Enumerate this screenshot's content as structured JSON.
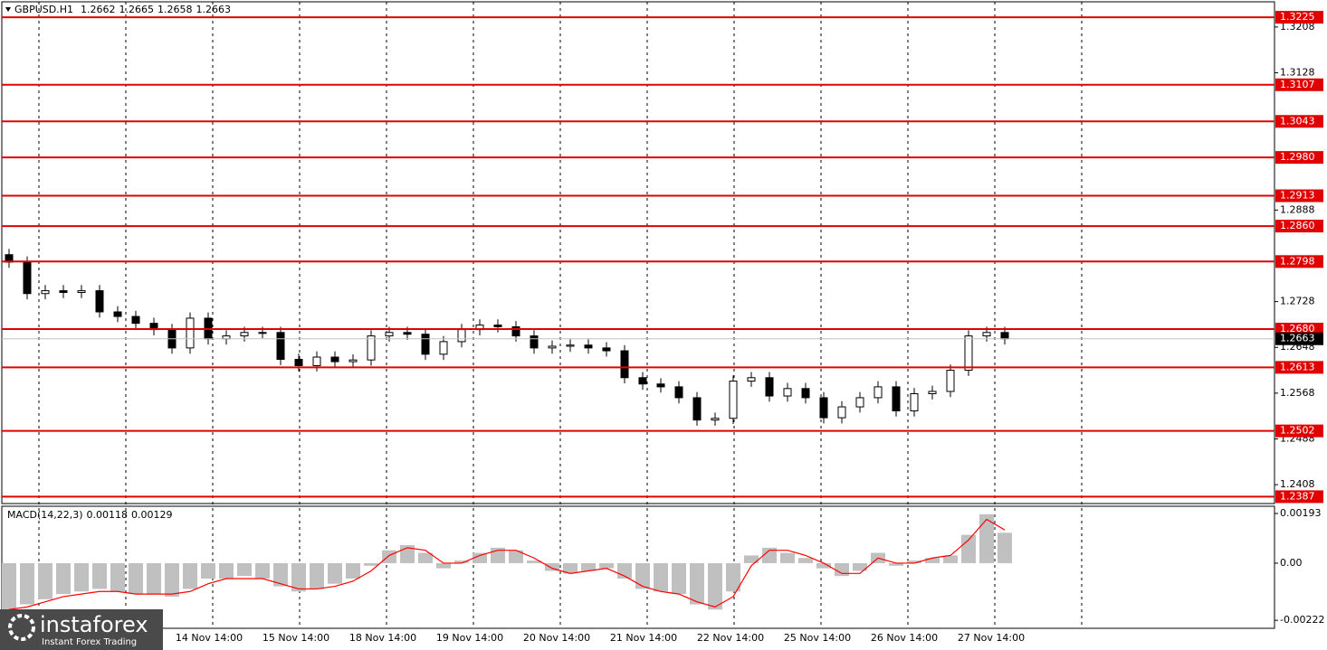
{
  "chart_data": [
    {
      "type": "candlestick",
      "title": "GBPUSD.H1",
      "header_values": [
        1.2662,
        1.2665,
        1.2658,
        1.2663
      ],
      "open": [
        1.281,
        1.2797,
        1.2742,
        1.2747,
        1.2744,
        1.2747,
        1.271,
        1.2702,
        1.269,
        1.2679,
        1.2647,
        1.2699,
        1.2663,
        1.2668,
        1.2674,
        1.2674,
        1.2627,
        1.2616,
        1.2631,
        1.2623,
        1.2626,
        1.2668,
        1.2674,
        1.2671,
        1.2636,
        1.2658,
        1.2679,
        1.2687,
        1.2684,
        1.2668,
        1.2647,
        1.265,
        1.2652,
        1.2647,
        1.2642,
        1.2595,
        1.2584,
        1.2579,
        1.256,
        1.2521,
        1.2524,
        1.2589,
        1.2595,
        1.2563,
        1.2576,
        1.256,
        1.2525,
        1.2544,
        1.256,
        1.2579,
        1.2537,
        1.2567,
        1.2571,
        1.2608,
        1.2668,
        1.2674
      ],
      "high": [
        1.282,
        1.2807,
        1.2757,
        1.2757,
        1.2757,
        1.2757,
        1.272,
        1.2712,
        1.27,
        1.2689,
        1.2709,
        1.2709,
        1.2678,
        1.2684,
        1.2684,
        1.2684,
        1.2637,
        1.2641,
        1.2641,
        1.2636,
        1.2678,
        1.2684,
        1.2684,
        1.2681,
        1.2668,
        1.2689,
        1.2697,
        1.2697,
        1.2694,
        1.2678,
        1.266,
        1.2662,
        1.2662,
        1.2657,
        1.2652,
        1.2605,
        1.2594,
        1.2589,
        1.257,
        1.2534,
        1.2599,
        1.2605,
        1.2605,
        1.2586,
        1.2586,
        1.257,
        1.2554,
        1.257,
        1.2589,
        1.2589,
        1.2577,
        1.2581,
        1.2618,
        1.2678,
        1.2684,
        1.2684
      ],
      "low": [
        1.2787,
        1.2732,
        1.2732,
        1.2734,
        1.2734,
        1.27,
        1.2692,
        1.268,
        1.2669,
        1.2637,
        1.2637,
        1.2653,
        1.2653,
        1.2658,
        1.2664,
        1.2617,
        1.2606,
        1.2606,
        1.2613,
        1.2613,
        1.2616,
        1.2658,
        1.2661,
        1.2626,
        1.2626,
        1.2648,
        1.2669,
        1.2674,
        1.2658,
        1.2637,
        1.2637,
        1.264,
        1.2637,
        1.2632,
        1.2585,
        1.2574,
        1.2569,
        1.255,
        1.2511,
        1.2511,
        1.2514,
        1.2579,
        1.2553,
        1.2553,
        1.255,
        1.2515,
        1.2515,
        1.2534,
        1.255,
        1.2527,
        1.2527,
        1.2557,
        1.2561,
        1.2598,
        1.2658,
        1.2653
      ],
      "close": [
        1.2797,
        1.2742,
        1.2747,
        1.2744,
        1.2747,
        1.271,
        1.2702,
        1.269,
        1.2679,
        1.2647,
        1.2699,
        1.2663,
        1.2668,
        1.2674,
        1.2674,
        1.2627,
        1.2616,
        1.2631,
        1.2623,
        1.2626,
        1.2668,
        1.2674,
        1.2671,
        1.2636,
        1.2658,
        1.2679,
        1.2687,
        1.2684,
        1.2668,
        1.2647,
        1.265,
        1.2652,
        1.2647,
        1.2642,
        1.2595,
        1.2584,
        1.2579,
        1.256,
        1.2521,
        1.2524,
        1.2589,
        1.2595,
        1.2563,
        1.2576,
        1.256,
        1.2525,
        1.2544,
        1.256,
        1.2579,
        1.2537,
        1.2567,
        1.2571,
        1.2608,
        1.2668,
        1.2674,
        1.2663
      ],
      "color_up": "#ffffff",
      "color_down": "#000000",
      "ylim": [
        1.2375,
        1.3252
      ],
      "yticks": [
        1.3208,
        1.3128,
        1.2888,
        1.2728,
        1.2648,
        1.2568,
        1.2488,
        1.2408
      ],
      "levels": [
        1.3225,
        1.3107,
        1.3043,
        {
          "value": 1.298,
          "label": "1.2980"
        },
        1.2913,
        {
          "value": 1.286,
          "label": "1.2860"
        },
        1.2798,
        {
          "value": 1.268,
          "label": "1.2680"
        },
        1.2613,
        1.2502,
        1.2387
      ],
      "level_color": "#e00000",
      "current_price": 1.2663,
      "x_labels": [
        "14 Nov 14:00",
        "15 Nov 14:00",
        "18 Nov 14:00",
        "19 Nov 14:00",
        "20 Nov 14:00",
        "21 Nov 14:00",
        "22 Nov 14:00",
        "25 Nov 14:00",
        "26 Nov 14:00",
        "27 Nov 14:00"
      ]
    },
    {
      "type": "macd",
      "title": "MACD(14,22,3)",
      "header_values": [
        0.00118,
        0.00129
      ],
      "histogram": {
        "color": "#c0c0c0",
        "values": [
          -0.0018,
          -0.0016,
          -0.0014,
          -0.0012,
          -0.0011,
          -0.001,
          -0.0011,
          -0.0012,
          -0.0012,
          -0.0013,
          -0.001,
          -0.0006,
          -0.0006,
          -0.0005,
          -0.0006,
          -0.0009,
          -0.0011,
          -0.001,
          -0.0008,
          -0.0006,
          -0.0001,
          0.0005,
          0.0007,
          0.0004,
          -0.0002,
          0.0001,
          0.0004,
          0.0006,
          0.0005,
          0.0001,
          -0.0003,
          -0.0004,
          -0.0003,
          -0.0002,
          -0.0006,
          -0.001,
          -0.0011,
          -0.0012,
          -0.0016,
          -0.0018,
          -0.0011,
          0.0003,
          0.0006,
          0.0004,
          0.0002,
          -0.0002,
          -0.0005,
          -0.0003,
          0.0004,
          -0.0001,
          0.0001,
          0.0002,
          0.0003,
          0.0011,
          0.0019,
          0.00118
        ]
      },
      "signal": {
        "color": "#ff0000",
        "values": [
          -0.0018,
          -0.0017,
          -0.0015,
          -0.0013,
          -0.0012,
          -0.0011,
          -0.0011,
          -0.0012,
          -0.0012,
          -0.0012,
          -0.0011,
          -0.0008,
          -0.0006,
          -0.0006,
          -0.0006,
          -0.0008,
          -0.001,
          -0.001,
          -0.0009,
          -0.0007,
          -0.0003,
          0.0003,
          0.0006,
          0.0005,
          0.0,
          0.0,
          0.0003,
          0.0005,
          0.0005,
          0.0002,
          -0.0002,
          -0.0004,
          -0.0003,
          -0.0002,
          -0.0005,
          -0.0009,
          -0.0011,
          -0.0012,
          -0.0015,
          -0.0017,
          -0.0013,
          -0.0001,
          0.0005,
          0.0005,
          0.0003,
          0.0,
          -0.0004,
          -0.0004,
          0.0002,
          0.0,
          0.0,
          0.0002,
          0.0003,
          0.0009,
          0.0017,
          0.00129
        ]
      },
      "ylim": [
        -0.00253,
        0.00221
      ],
      "yticks": [
        0.00193,
        {
          "value": 0,
          "label": "0.00"
        },
        -0.00222
      ]
    }
  ],
  "logo": {
    "name": "instaforex",
    "tagline": "Instant Forex Trading"
  }
}
